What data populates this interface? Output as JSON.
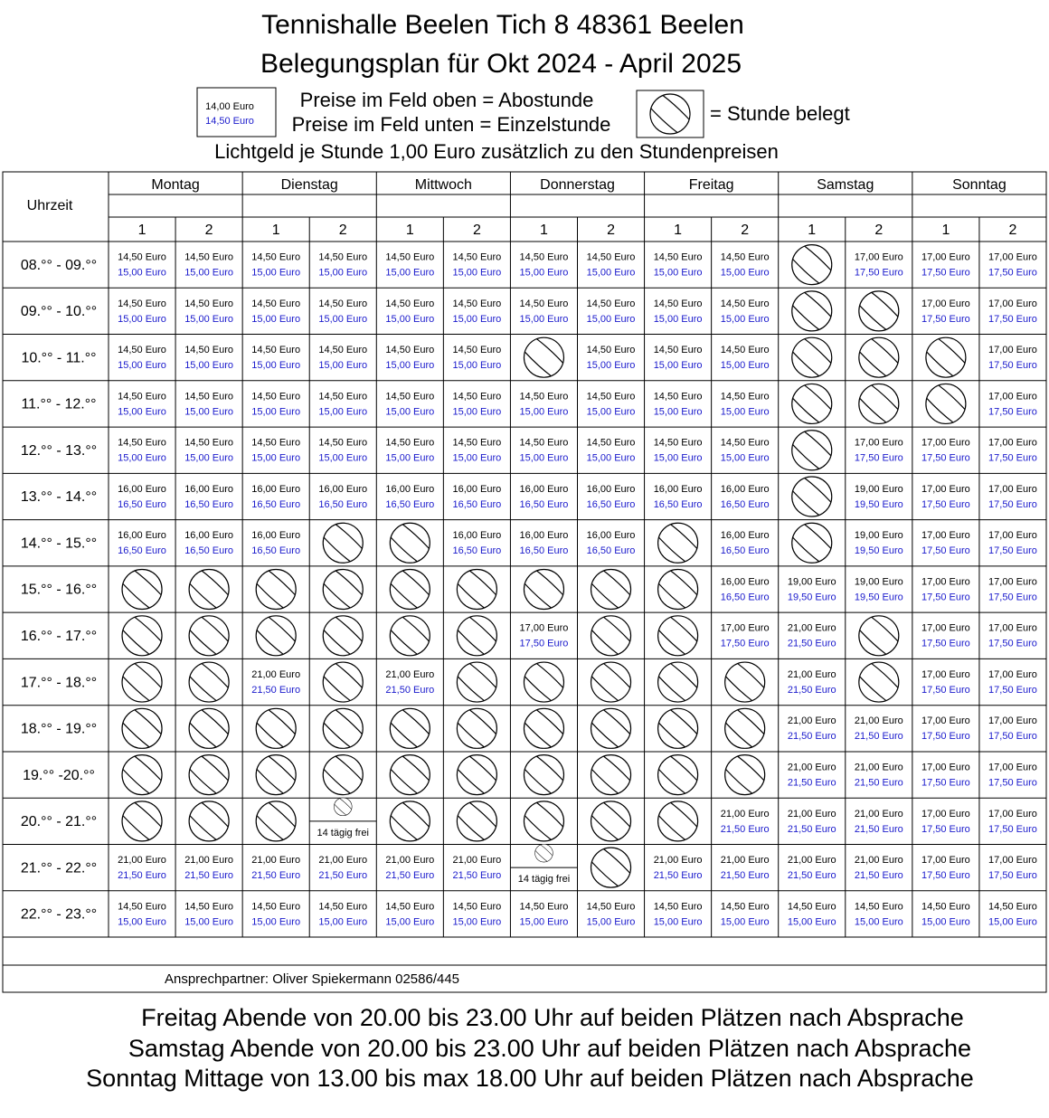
{
  "header": {
    "title": "Tennishalle Beelen Tich 8 48361 Beelen",
    "subtitle": "Belegungsplan für Okt 2024 - April 2025",
    "legend_price_top": "14,00 Euro",
    "legend_price_bottom": "14,50 Euro",
    "legend_line1": "Preise im Feld oben = Abostunde",
    "legend_line2": "Preise im Feld unten = Einzelstunde",
    "legend_booked": "= Stunde belegt",
    "light_fee": "Lichtgeld je Stunde 1,00 Euro zusätzlich zu den Stundenpreisen"
  },
  "table": {
    "time_header": "Uhrzeit",
    "days": [
      "Montag",
      "Dienstag",
      "Mittwoch",
      "Donnerstag",
      "Freitag",
      "Samstag",
      "Sonntag"
    ],
    "court_numbers": [
      "1",
      "2",
      "1",
      "2",
      "1",
      "2",
      "1",
      "2",
      "1",
      "2",
      "1",
      "2",
      "1",
      "2"
    ],
    "rows": [
      {
        "time": "08.°° - 09.°°",
        "cells": [
          [
            "14,50 Euro",
            "15,00 Euro"
          ],
          [
            "14,50 Euro",
            "15,00 Euro"
          ],
          [
            "14,50 Euro",
            "15,00 Euro"
          ],
          [
            "14,50 Euro",
            "15,00 Euro"
          ],
          [
            "14,50 Euro",
            "15,00 Euro"
          ],
          [
            "14,50 Euro",
            "15,00 Euro"
          ],
          [
            "14,50 Euro",
            "15,00 Euro"
          ],
          [
            "14,50 Euro",
            "15,00 Euro"
          ],
          [
            "14,50 Euro",
            "15,00 Euro"
          ],
          [
            "14,50 Euro",
            "15,00 Euro"
          ],
          null,
          [
            "17,00 Euro",
            "17,50 Euro"
          ],
          [
            "17,00 Euro",
            "17,50 Euro"
          ],
          [
            "17,00 Euro",
            "17,50 Euro"
          ]
        ]
      },
      {
        "time": "09.°° - 10.°°",
        "cells": [
          [
            "14,50 Euro",
            "15,00 Euro"
          ],
          [
            "14,50 Euro",
            "15,00 Euro"
          ],
          [
            "14,50 Euro",
            "15,00 Euro"
          ],
          [
            "14,50 Euro",
            "15,00 Euro"
          ],
          [
            "14,50 Euro",
            "15,00 Euro"
          ],
          [
            "14,50 Euro",
            "15,00 Euro"
          ],
          [
            "14,50 Euro",
            "15,00 Euro"
          ],
          [
            "14,50 Euro",
            "15,00 Euro"
          ],
          [
            "14,50 Euro",
            "15,00 Euro"
          ],
          [
            "14,50 Euro",
            "15,00 Euro"
          ],
          null,
          null,
          [
            "17,00 Euro",
            "17,50 Euro"
          ],
          [
            "17,00 Euro",
            "17,50 Euro"
          ]
        ]
      },
      {
        "time": "10.°° - 11.°°",
        "cells": [
          [
            "14,50 Euro",
            "15,00 Euro"
          ],
          [
            "14,50 Euro",
            "15,00 Euro"
          ],
          [
            "14,50 Euro",
            "15,00 Euro"
          ],
          [
            "14,50 Euro",
            "15,00 Euro"
          ],
          [
            "14,50 Euro",
            "15,00 Euro"
          ],
          [
            "14,50 Euro",
            "15,00 Euro"
          ],
          null,
          [
            "14,50 Euro",
            "15,00 Euro"
          ],
          [
            "14,50 Euro",
            "15,00 Euro"
          ],
          [
            "14,50 Euro",
            "15,00 Euro"
          ],
          null,
          null,
          null,
          [
            "17,00 Euro",
            "17,50 Euro"
          ]
        ]
      },
      {
        "time": "11.°° - 12.°°",
        "cells": [
          [
            "14,50 Euro",
            "15,00 Euro"
          ],
          [
            "14,50 Euro",
            "15,00 Euro"
          ],
          [
            "14,50 Euro",
            "15,00 Euro"
          ],
          [
            "14,50 Euro",
            "15,00 Euro"
          ],
          [
            "14,50 Euro",
            "15,00 Euro"
          ],
          [
            "14,50 Euro",
            "15,00 Euro"
          ],
          [
            "14,50 Euro",
            "15,00 Euro"
          ],
          [
            "14,50 Euro",
            "15,00 Euro"
          ],
          [
            "14,50 Euro",
            "15,00 Euro"
          ],
          [
            "14,50 Euro",
            "15,00 Euro"
          ],
          null,
          null,
          null,
          [
            "17,00 Euro",
            "17,50 Euro"
          ]
        ]
      },
      {
        "time": "12.°° - 13.°°",
        "cells": [
          [
            "14,50 Euro",
            "15,00 Euro"
          ],
          [
            "14,50 Euro",
            "15,00 Euro"
          ],
          [
            "14,50 Euro",
            "15,00 Euro"
          ],
          [
            "14,50 Euro",
            "15,00 Euro"
          ],
          [
            "14,50 Euro",
            "15,00 Euro"
          ],
          [
            "14,50 Euro",
            "15,00 Euro"
          ],
          [
            "14,50 Euro",
            "15,00 Euro"
          ],
          [
            "14,50 Euro",
            "15,00 Euro"
          ],
          [
            "14,50 Euro",
            "15,00 Euro"
          ],
          [
            "14,50 Euro",
            "15,00 Euro"
          ],
          null,
          [
            "17,00 Euro",
            "17,50 Euro"
          ],
          [
            "17,00 Euro",
            "17,50 Euro"
          ],
          [
            "17,00 Euro",
            "17,50 Euro"
          ]
        ]
      },
      {
        "time": "13.°° - 14.°°",
        "cells": [
          [
            "16,00 Euro",
            "16,50 Euro"
          ],
          [
            "16,00 Euro",
            "16,50 Euro"
          ],
          [
            "16,00 Euro",
            "16,50 Euro"
          ],
          [
            "16,00 Euro",
            "16,50 Euro"
          ],
          [
            "16,00 Euro",
            "16,50 Euro"
          ],
          [
            "16,00 Euro",
            "16,50 Euro"
          ],
          [
            "16,00 Euro",
            "16,50 Euro"
          ],
          [
            "16,00 Euro",
            "16,50 Euro"
          ],
          [
            "16,00 Euro",
            "16,50 Euro"
          ],
          [
            "16,00 Euro",
            "16,50 Euro"
          ],
          null,
          [
            "19,00 Euro",
            "19,50 Euro"
          ],
          [
            "17,00 Euro",
            "17,50 Euro"
          ],
          [
            "17,00 Euro",
            "17,50 Euro"
          ]
        ]
      },
      {
        "time": "14.°° - 15.°°",
        "cells": [
          [
            "16,00 Euro",
            "16,50 Euro"
          ],
          [
            "16,00 Euro",
            "16,50 Euro"
          ],
          [
            "16,00 Euro",
            "16,50 Euro"
          ],
          null,
          null,
          [
            "16,00 Euro",
            "16,50 Euro"
          ],
          [
            "16,00 Euro",
            "16,50 Euro"
          ],
          [
            "16,00 Euro",
            "16,50 Euro"
          ],
          null,
          [
            "16,00 Euro",
            "16,50 Euro"
          ],
          null,
          [
            "19,00 Euro",
            "19,50 Euro"
          ],
          [
            "17,00 Euro",
            "17,50 Euro"
          ],
          [
            "17,00 Euro",
            "17,50 Euro"
          ]
        ]
      },
      {
        "time": "15.°° - 16.°°",
        "cells": [
          null,
          null,
          null,
          null,
          null,
          null,
          null,
          null,
          null,
          [
            "16,00 Euro",
            "16,50 Euro"
          ],
          [
            "19,00 Euro",
            "19,50 Euro"
          ],
          [
            "19,00 Euro",
            "19,50 Euro"
          ],
          [
            "17,00 Euro",
            "17,50 Euro"
          ],
          [
            "17,00 Euro",
            "17,50 Euro"
          ]
        ]
      },
      {
        "time": "16.°° - 17.°°",
        "cells": [
          null,
          null,
          null,
          null,
          null,
          null,
          [
            "17,00 Euro",
            "17,50 Euro"
          ],
          null,
          null,
          [
            "17,00 Euro",
            "17,50 Euro"
          ],
          [
            "21,00 Euro",
            "21,50 Euro"
          ],
          null,
          [
            "17,00 Euro",
            "17,50 Euro"
          ],
          [
            "17,00 Euro",
            "17,50 Euro"
          ]
        ]
      },
      {
        "time": "17.°° - 18.°°",
        "cells": [
          null,
          null,
          [
            "21,00 Euro",
            "21,50 Euro"
          ],
          null,
          [
            "21,00 Euro",
            "21,50 Euro"
          ],
          null,
          null,
          null,
          null,
          null,
          [
            "21,00 Euro",
            "21,50 Euro"
          ],
          null,
          [
            "17,00 Euro",
            "17,50 Euro"
          ],
          [
            "17,00 Euro",
            "17,50 Euro"
          ]
        ]
      },
      {
        "time": "18.°° - 19.°°",
        "cells": [
          null,
          null,
          null,
          null,
          null,
          null,
          null,
          null,
          null,
          null,
          [
            "21,00 Euro",
            "21,50 Euro"
          ],
          [
            "21,00 Euro",
            "21,50 Euro"
          ],
          [
            "17,00 Euro",
            "17,50 Euro"
          ],
          [
            "17,00 Euro",
            "17,50 Euro"
          ]
        ]
      },
      {
        "time": "19.°° -20.°°",
        "cells": [
          null,
          null,
          null,
          null,
          null,
          null,
          null,
          null,
          null,
          null,
          [
            "21,00 Euro",
            "21,50 Euro"
          ],
          [
            "21,00 Euro",
            "21,50 Euro"
          ],
          [
            "17,00 Euro",
            "17,50 Euro"
          ],
          [
            "17,00 Euro",
            "17,50 Euro"
          ]
        ]
      },
      {
        "time": "20.°° - 21.°°",
        "cells": [
          null,
          null,
          null,
          {
            "note": "14 tägig frei"
          },
          null,
          null,
          null,
          null,
          null,
          [
            "21,00 Euro",
            "21,50 Euro"
          ],
          [
            "21,00 Euro",
            "21,50 Euro"
          ],
          [
            "21,00 Euro",
            "21,50 Euro"
          ],
          [
            "17,00 Euro",
            "17,50 Euro"
          ],
          [
            "17,00 Euro",
            "17,50 Euro"
          ]
        ]
      },
      {
        "time": "21.°° - 22.°°",
        "cells": [
          [
            "21,00 Euro",
            "21,50 Euro"
          ],
          [
            "21,00 Euro",
            "21,50 Euro"
          ],
          [
            "21,00 Euro",
            "21,50 Euro"
          ],
          [
            "21,00 Euro",
            "21,50 Euro"
          ],
          [
            "21,00 Euro",
            "21,50 Euro"
          ],
          [
            "21,00 Euro",
            "21,50 Euro"
          ],
          {
            "note": "14 tägig frei"
          },
          null,
          [
            "21,00 Euro",
            "21,50 Euro"
          ],
          [
            "21,00 Euro",
            "21,50 Euro"
          ],
          [
            "21,00 Euro",
            "21,50 Euro"
          ],
          [
            "21,00 Euro",
            "21,50 Euro"
          ],
          [
            "17,00 Euro",
            "17,50 Euro"
          ],
          [
            "17,00 Euro",
            "17,50 Euro"
          ]
        ]
      },
      {
        "time": "22.°° - 23.°°",
        "cells": [
          [
            "14,50 Euro",
            "15,00 Euro"
          ],
          [
            "14,50 Euro",
            "15,00 Euro"
          ],
          [
            "14,50 Euro",
            "15,00 Euro"
          ],
          [
            "14,50 Euro",
            "15,00 Euro"
          ],
          [
            "14,50 Euro",
            "15,00 Euro"
          ],
          [
            "14,50 Euro",
            "15,00 Euro"
          ],
          [
            "14,50 Euro",
            "15,00 Euro"
          ],
          [
            "14,50 Euro",
            "15,00 Euro"
          ],
          [
            "14,50 Euro",
            "15,00 Euro"
          ],
          [
            "14,50 Euro",
            "15,00 Euro"
          ],
          [
            "14,50 Euro",
            "15,00 Euro"
          ],
          [
            "14,50 Euro",
            "15,00 Euro"
          ],
          [
            "14,50 Euro",
            "15,00 Euro"
          ],
          [
            "14,50 Euro",
            "15,00 Euro"
          ]
        ]
      }
    ],
    "contact": "Ansprechpartner: Oliver Spiekermann 02586/445"
  },
  "footer": {
    "lines": [
      "Freitag Abende von 20.00 bis 23.00 Uhr auf beiden Plätzen nach Absprache",
      "Samstag Abende von 20.00 bis 23.00 Uhr auf beiden Plätzen nach Absprache",
      "Sonntag Mittage von 13.00 bis max 18.00 Uhr auf beiden Plätzen nach Absprache"
    ]
  }
}
